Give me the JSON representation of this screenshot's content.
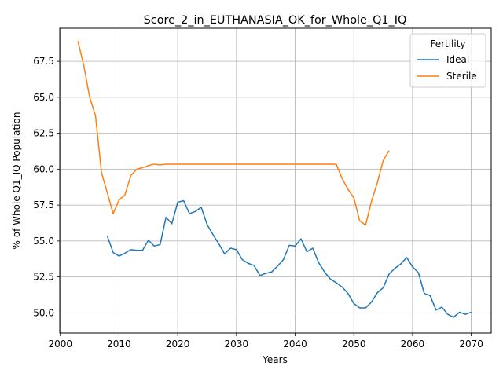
{
  "chart_data": {
    "type": "line",
    "title": "Score_2_in_EUTHANASIA_OK_for_Whole_Q1_IQ",
    "xlabel": "Years",
    "ylabel": "% of Whole Q1_IQ Population",
    "xlim": [
      1999.9,
      2073.4
    ],
    "ylim": [
      48.6,
      69.8
    ],
    "xticks": [
      2000,
      2010,
      2020,
      2030,
      2040,
      2050,
      2060,
      2070
    ],
    "yticks": [
      50.0,
      52.5,
      55.0,
      57.5,
      60.0,
      62.5,
      65.0,
      67.5
    ],
    "grid": true,
    "legend": {
      "title": "Fertility",
      "position": "top-right"
    },
    "series": [
      {
        "name": "Ideal",
        "color": "#1f77b4",
        "points": [
          [
            2008,
            55.35
          ],
          [
            2009,
            54.2
          ],
          [
            2010,
            53.95
          ],
          [
            2011,
            54.15
          ],
          [
            2012,
            54.4
          ],
          [
            2013,
            54.35
          ],
          [
            2014,
            54.35
          ],
          [
            2015,
            55.05
          ],
          [
            2016,
            54.65
          ],
          [
            2017,
            54.75
          ],
          [
            2018,
            56.65
          ],
          [
            2019,
            56.2
          ],
          [
            2020,
            57.7
          ],
          [
            2021,
            57.8
          ],
          [
            2022,
            56.9
          ],
          [
            2023,
            57.05
          ],
          [
            2024,
            57.35
          ],
          [
            2025,
            56.15
          ],
          [
            2026,
            55.45
          ],
          [
            2027,
            54.8
          ],
          [
            2028,
            54.1
          ],
          [
            2029,
            54.5
          ],
          [
            2030,
            54.4
          ],
          [
            2031,
            53.7
          ],
          [
            2032,
            53.45
          ],
          [
            2033,
            53.3
          ],
          [
            2034,
            52.6
          ],
          [
            2035,
            52.75
          ],
          [
            2036,
            52.85
          ],
          [
            2037,
            53.25
          ],
          [
            2038,
            53.7
          ],
          [
            2039,
            54.7
          ],
          [
            2040,
            54.65
          ],
          [
            2041,
            55.15
          ],
          [
            2042,
            54.25
          ],
          [
            2043,
            54.5
          ],
          [
            2044,
            53.5
          ],
          [
            2045,
            52.85
          ],
          [
            2046,
            52.35
          ],
          [
            2047,
            52.1
          ],
          [
            2048,
            51.8
          ],
          [
            2049,
            51.35
          ],
          [
            2050,
            50.65
          ],
          [
            2051,
            50.35
          ],
          [
            2052,
            50.35
          ],
          [
            2053,
            50.75
          ],
          [
            2054,
            51.4
          ],
          [
            2055,
            51.75
          ],
          [
            2056,
            52.7
          ],
          [
            2057,
            53.1
          ],
          [
            2058,
            53.4
          ],
          [
            2059,
            53.85
          ],
          [
            2060,
            53.2
          ],
          [
            2061,
            52.8
          ],
          [
            2062,
            51.35
          ],
          [
            2063,
            51.2
          ],
          [
            2064,
            50.2
          ],
          [
            2065,
            50.4
          ],
          [
            2066,
            49.9
          ],
          [
            2067,
            49.7
          ],
          [
            2068,
            50.05
          ],
          [
            2069,
            49.9
          ],
          [
            2070,
            50.05
          ]
        ]
      },
      {
        "name": "Sterile",
        "color": "#ff7f0e",
        "points": [
          [
            2003,
            68.9
          ],
          [
            2004,
            67.2
          ],
          [
            2005,
            65.0
          ],
          [
            2006,
            63.7
          ],
          [
            2007,
            59.8
          ],
          [
            2008,
            58.35
          ],
          [
            2009,
            56.9
          ],
          [
            2010,
            57.85
          ],
          [
            2011,
            58.2
          ],
          [
            2012,
            59.55
          ],
          [
            2013,
            60.0
          ],
          [
            2014,
            60.1
          ],
          [
            2015,
            60.25
          ],
          [
            2016,
            60.35
          ],
          [
            2017,
            60.3
          ],
          [
            2018,
            60.35
          ],
          [
            2019,
            60.35
          ],
          [
            2020,
            60.35
          ],
          [
            2021,
            60.35
          ],
          [
            2022,
            60.35
          ],
          [
            2023,
            60.35
          ],
          [
            2024,
            60.35
          ],
          [
            2025,
            60.35
          ],
          [
            2026,
            60.35
          ],
          [
            2027,
            60.35
          ],
          [
            2028,
            60.35
          ],
          [
            2029,
            60.35
          ],
          [
            2030,
            60.35
          ],
          [
            2031,
            60.35
          ],
          [
            2032,
            60.35
          ],
          [
            2033,
            60.35
          ],
          [
            2034,
            60.35
          ],
          [
            2035,
            60.35
          ],
          [
            2036,
            60.35
          ],
          [
            2037,
            60.35
          ],
          [
            2038,
            60.35
          ],
          [
            2039,
            60.35
          ],
          [
            2040,
            60.35
          ],
          [
            2041,
            60.35
          ],
          [
            2042,
            60.35
          ],
          [
            2043,
            60.35
          ],
          [
            2044,
            60.35
          ],
          [
            2045,
            60.35
          ],
          [
            2046,
            60.35
          ],
          [
            2047,
            60.35
          ],
          [
            2048,
            59.35
          ],
          [
            2049,
            58.6
          ],
          [
            2050,
            58.0
          ],
          [
            2051,
            56.4
          ],
          [
            2052,
            56.1
          ],
          [
            2053,
            57.75
          ],
          [
            2054,
            59.05
          ],
          [
            2055,
            60.6
          ],
          [
            2056,
            61.3
          ]
        ]
      }
    ]
  }
}
